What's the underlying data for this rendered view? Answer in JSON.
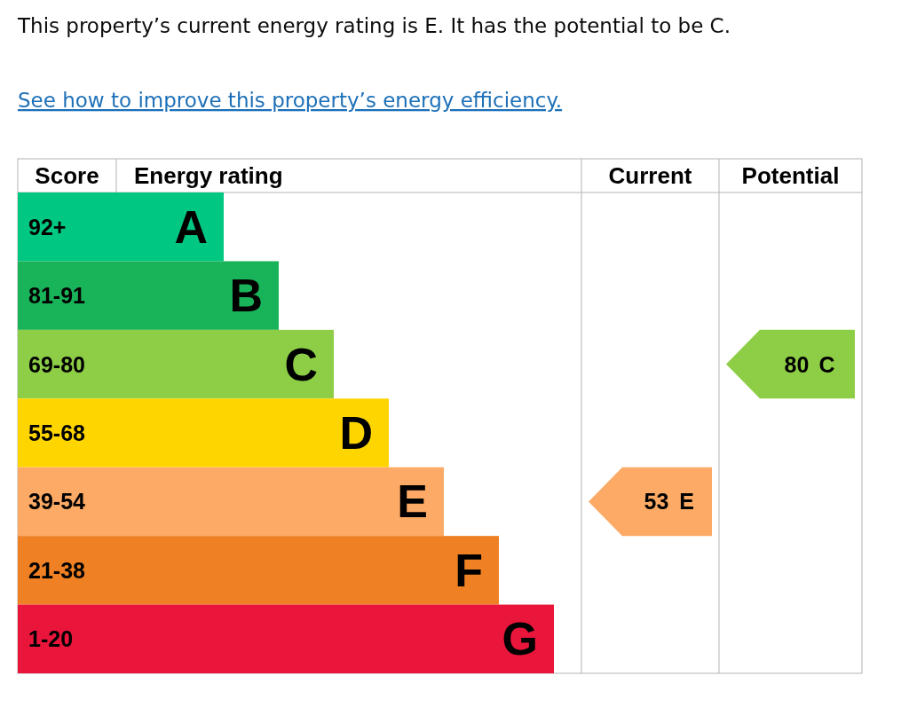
{
  "chart_data": {
    "type": "other",
    "title": "This property’s current energy rating is E. It has the potential to be C.",
    "subtitle": "See how to improve this property’s energy efficiency.",
    "ylabel": "Score",
    "xlabel": "Energy rating",
    "categories": [
      "92+",
      "81-91",
      "69-80",
      "55-68",
      "39-54",
      "21-38",
      "1-20"
    ],
    "value_labels": [
      "A",
      "B",
      "C",
      "D",
      "E",
      "F",
      "G"
    ],
    "colors": [
      "#00c781",
      "#19b459",
      "#8dce46",
      "#ffd500",
      "#fcaa65",
      "#ef8023",
      "#e9153b"
    ],
    "data_labels": true,
    "annotations": [
      "Current",
      "Potential"
    ],
    "series": [
      {
        "values": [
          null,
          null,
          null,
          null,
          53,
          null,
          null
        ]
      },
      {
        "values": [
          null,
          null,
          80,
          null,
          null,
          null,
          null
        ]
      }
    ]
  }
}
